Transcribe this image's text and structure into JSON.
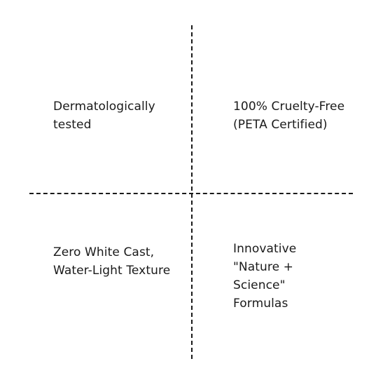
{
  "features": [
    {
      "id": "tl",
      "text": "Dermatologically tested"
    },
    {
      "id": "tr",
      "text": "100% Cruelty-Free (PETA Certified)"
    },
    {
      "id": "bl",
      "text": "Zero White Cast, Water-Light Texture"
    },
    {
      "id": "br",
      "text": "Innovative \"Nature + Science\" Formulas"
    }
  ],
  "colors": {
    "text": "#1a1a1a",
    "divider": "#1a1a1a",
    "background": "#ffffff"
  }
}
